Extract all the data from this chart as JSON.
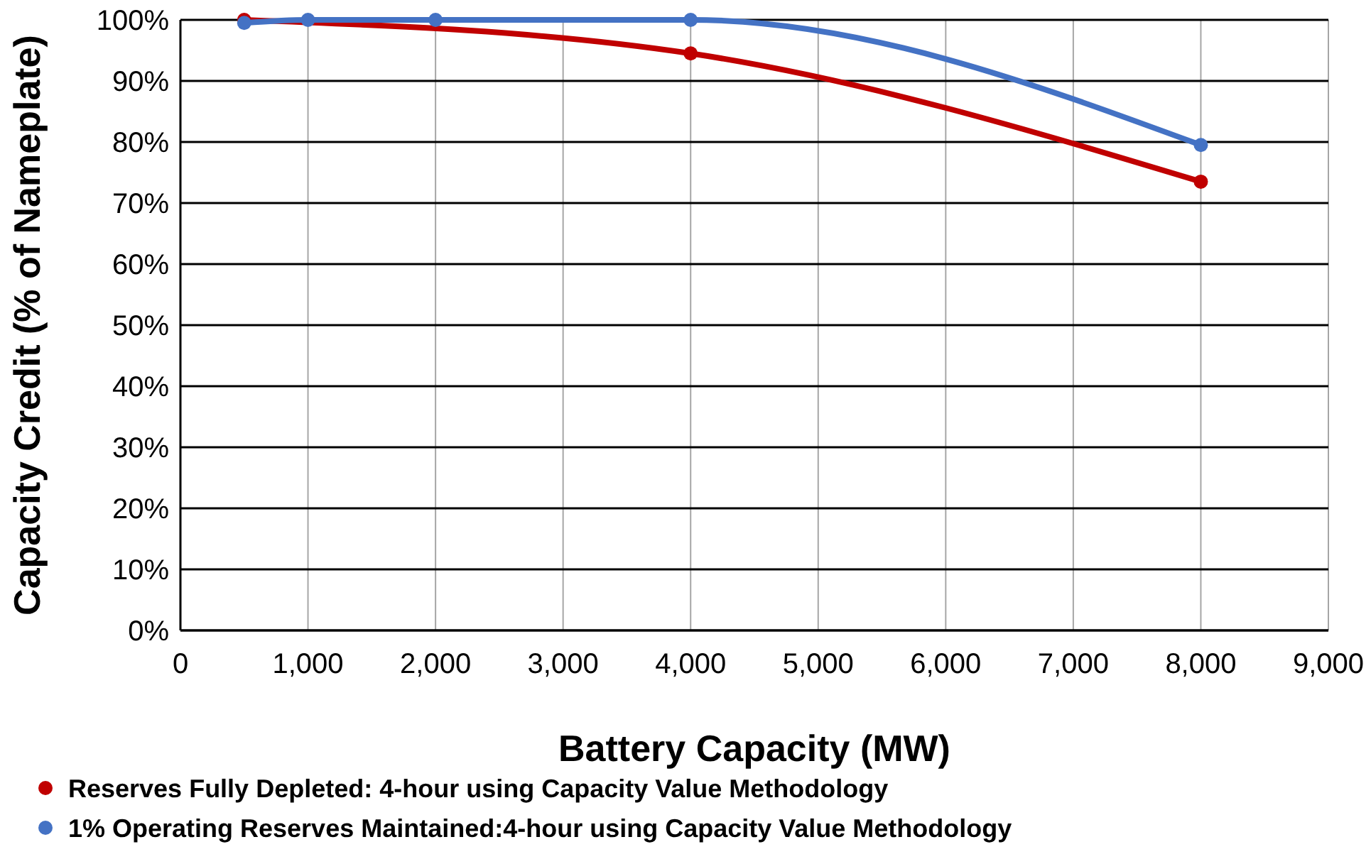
{
  "chart_data": {
    "type": "line",
    "xlabel": "Battery Capacity (MW)",
    "ylabel": "Capacity Credit (% of Nameplate)",
    "x": [
      500,
      1000,
      2000,
      4000,
      8000
    ],
    "series": [
      {
        "name": "Reserves Fully Depleted: 4-hour using Capacity Value Methodology",
        "color": "#c00000",
        "values": [
          100,
          null,
          null,
          94.5,
          73.5
        ]
      },
      {
        "name": "1% Operating Reserves Maintained:4-hour using Capacity Value Methodology",
        "color": "#4472c4",
        "values": [
          99.5,
          100,
          100,
          100,
          79.5
        ]
      }
    ],
    "xlim": [
      0,
      9000
    ],
    "xticks": [
      {
        "value": 0,
        "label": "0"
      },
      {
        "value": 1000,
        "label": "1,000"
      },
      {
        "value": 2000,
        "label": "2,000"
      },
      {
        "value": 3000,
        "label": "3,000"
      },
      {
        "value": 4000,
        "label": "4,000"
      },
      {
        "value": 5000,
        "label": "5,000"
      },
      {
        "value": 6000,
        "label": "6,000"
      },
      {
        "value": 7000,
        "label": "7,000"
      },
      {
        "value": 8000,
        "label": "8,000"
      },
      {
        "value": 9000,
        "label": "9,000"
      }
    ],
    "ylim": [
      0,
      100
    ],
    "yticks": [
      {
        "value": 0,
        "label": "0%"
      },
      {
        "value": 10,
        "label": "10%"
      },
      {
        "value": 20,
        "label": "20%"
      },
      {
        "value": 30,
        "label": "30%"
      },
      {
        "value": 40,
        "label": "40%"
      },
      {
        "value": 50,
        "label": "50%"
      },
      {
        "value": 60,
        "label": "60%"
      },
      {
        "value": 70,
        "label": "70%"
      },
      {
        "value": 80,
        "label": "80%"
      },
      {
        "value": 90,
        "label": "90%"
      },
      {
        "value": 100,
        "label": "100%"
      }
    ],
    "grid": true,
    "legend": "bottom",
    "marker": "circle",
    "line_style": "solid"
  }
}
